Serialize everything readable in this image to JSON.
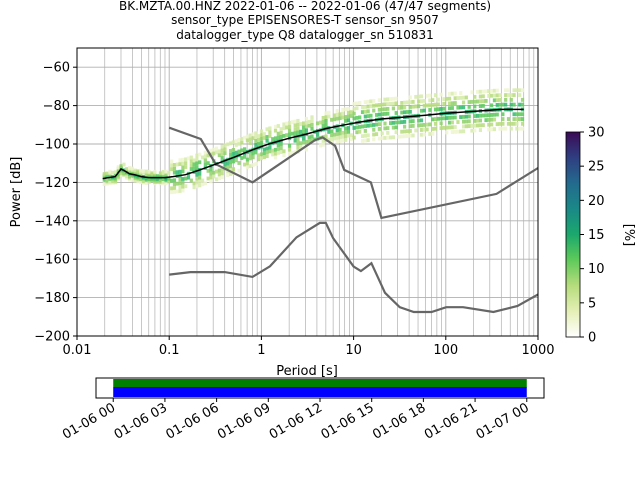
{
  "title_lines": [
    "BK.MZTA.00.HNZ   2022-01-06 -- 2022-01-06  (47/47 segments)",
    "sensor_type EPISENSORES-T sensor_sn 9507",
    "datalogger_type Q8 datalogger_sn 510831"
  ],
  "chart_data": {
    "type": "heatmap",
    "xlabel": "Period [s]",
    "ylabel": "Power [dB]",
    "xscale": "log",
    "xlim": [
      0.01,
      1000
    ],
    "ylim": [
      -200,
      -50
    ],
    "x_ticks": [
      {
        "v": 0.01,
        "label": "0.01"
      },
      {
        "v": 0.1,
        "label": "0.1"
      },
      {
        "v": 1,
        "label": "1"
      },
      {
        "v": 10,
        "label": "10"
      },
      {
        "v": 100,
        "label": "100"
      },
      {
        "v": 1000,
        "label": "1000"
      }
    ],
    "y_ticks": [
      {
        "v": -60,
        "label": "−60"
      },
      {
        "v": -80,
        "label": "−80"
      },
      {
        "v": -100,
        "label": "−100"
      },
      {
        "v": -120,
        "label": "−120"
      },
      {
        "v": -140,
        "label": "−140"
      },
      {
        "v": -160,
        "label": "−160"
      },
      {
        "v": -180,
        "label": "−180"
      },
      {
        "v": -200,
        "label": "−200"
      }
    ],
    "grid": true,
    "colorbar": {
      "label": "[%]",
      "range": [
        0,
        30
      ],
      "ticks": [
        {
          "v": 0,
          "label": "0"
        },
        {
          "v": 5,
          "label": "5"
        },
        {
          "v": 10,
          "label": "10"
        },
        {
          "v": 15,
          "label": "15"
        },
        {
          "v": 20,
          "label": "20"
        },
        {
          "v": 25,
          "label": "25"
        },
        {
          "v": 30,
          "label": "30"
        }
      ]
    },
    "mean_psd": {
      "name": "mean",
      "x": [
        0.019,
        0.022,
        0.026,
        0.03,
        0.033,
        0.037,
        0.042,
        0.05,
        0.06,
        0.07,
        0.09,
        0.11,
        0.15,
        0.2,
        0.3,
        0.5,
        0.8,
        1.2,
        2,
        3,
        5,
        8,
        12,
        20,
        35,
        60,
        100,
        200,
        400,
        700
      ],
      "y": [
        -118,
        -117.5,
        -117,
        -113,
        -114,
        -115.5,
        -116,
        -117,
        -117.5,
        -117.5,
        -117.5,
        -117,
        -116,
        -114,
        -111,
        -107,
        -103,
        -100,
        -97,
        -95,
        -92,
        -90,
        -88.5,
        -87,
        -86,
        -85,
        -84,
        -83,
        -82,
        -82
      ]
    },
    "noise_models": [
      {
        "name": "high_noise_model",
        "x": [
          0.1,
          0.22,
          0.32,
          0.8,
          3.8,
          4.6,
          6.3,
          7.9,
          15.4,
          20,
          354.8,
          1000
        ],
        "y": [
          -91.5,
          -97.4,
          -110.5,
          -120,
          -98,
          -96.5,
          -101,
          -113.5,
          -120,
          -138.5,
          -126,
          -112.5
        ]
      },
      {
        "name": "low_noise_model",
        "x": [
          0.1,
          0.17,
          0.4,
          0.8,
          1.24,
          2.4,
          4.3,
          5,
          6,
          10,
          12,
          15.6,
          21.9,
          31.6,
          45,
          70,
          101,
          154,
          328,
          600,
          1000
        ],
        "y": [
          -168,
          -166.7,
          -166.7,
          -169.2,
          -163.7,
          -148.6,
          -141.1,
          -141.1,
          -149,
          -163.8,
          -166.2,
          -162.1,
          -177.5,
          -185,
          -187.5,
          -187.5,
          -185,
          -185,
          -187.5,
          -184.4,
          -178.4
        ]
      }
    ],
    "time_axis": {
      "xlim_hours": [
        -1,
        25
      ],
      "data_span_hours": [
        0,
        24
      ],
      "ticks": [
        {
          "v": 0,
          "label": "01-06 00"
        },
        {
          "v": 3,
          "label": "01-06 03"
        },
        {
          "v": 6,
          "label": "01-06 06"
        },
        {
          "v": 9,
          "label": "01-06 09"
        },
        {
          "v": 12,
          "label": "01-06 12"
        },
        {
          "v": 15,
          "label": "01-06 15"
        },
        {
          "v": 18,
          "label": "01-06 18"
        },
        {
          "v": 21,
          "label": "01-06 21"
        },
        {
          "v": 24,
          "label": "01-07 00"
        }
      ],
      "bar_colors": {
        "top": "#008000",
        "bottom": "#0000ff"
      }
    }
  }
}
